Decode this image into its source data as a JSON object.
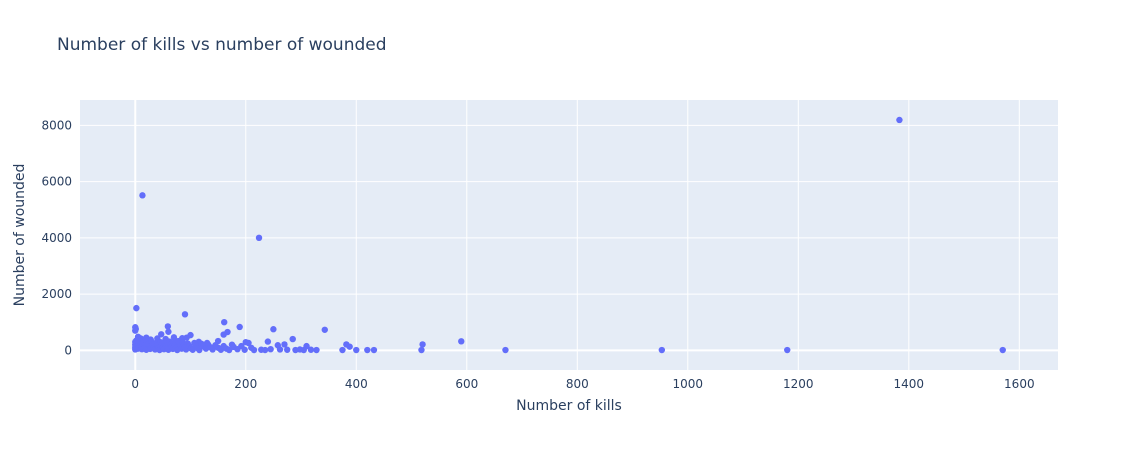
{
  "chart_data": {
    "type": "scatter",
    "title": "Number of kills vs number of wounded",
    "xlabel": "Number of kills",
    "ylabel": "Number of wounded",
    "xlim": [
      -100,
      1670
    ],
    "ylim": [
      -700,
      8900
    ],
    "xticks": [
      0,
      200,
      400,
      600,
      800,
      1000,
      1200,
      1400,
      1600
    ],
    "yticks": [
      0,
      2000,
      4000,
      6000,
      8000
    ],
    "grid": true,
    "colors": {
      "marker": "#636efa",
      "plot_bg": "#e5ecf6",
      "grid": "#ffffff",
      "text": "#2a3f5f"
    },
    "points": [
      {
        "x": 1383,
        "y": 8190
      },
      {
        "x": 13,
        "y": 5510
      },
      {
        "x": 224,
        "y": 4000
      },
      {
        "x": 2,
        "y": 1500
      },
      {
        "x": 90,
        "y": 1280
      },
      {
        "x": 161,
        "y": 1000
      },
      {
        "x": 189,
        "y": 830
      },
      {
        "x": 0,
        "y": 820
      },
      {
        "x": 59,
        "y": 850
      },
      {
        "x": 1,
        "y": 760
      },
      {
        "x": 250,
        "y": 750
      },
      {
        "x": 343,
        "y": 730
      },
      {
        "x": 0,
        "y": 700
      },
      {
        "x": 60,
        "y": 660
      },
      {
        "x": 167,
        "y": 650
      },
      {
        "x": 100,
        "y": 540
      },
      {
        "x": 47,
        "y": 570
      },
      {
        "x": 160,
        "y": 560
      },
      {
        "x": 5,
        "y": 480
      },
      {
        "x": 20,
        "y": 450
      },
      {
        "x": 40,
        "y": 420
      },
      {
        "x": 70,
        "y": 460
      },
      {
        "x": 85,
        "y": 430
      },
      {
        "x": 10,
        "y": 420
      },
      {
        "x": 28,
        "y": 380
      },
      {
        "x": 55,
        "y": 400
      },
      {
        "x": 93,
        "y": 450
      },
      {
        "x": 115,
        "y": 300
      },
      {
        "x": 130,
        "y": 260
      },
      {
        "x": 150,
        "y": 330
      },
      {
        "x": 285,
        "y": 400
      },
      {
        "x": 240,
        "y": 310
      },
      {
        "x": 590,
        "y": 320
      },
      {
        "x": 200,
        "y": 290
      },
      {
        "x": 205,
        "y": 260
      },
      {
        "x": 270,
        "y": 210
      },
      {
        "x": 382,
        "y": 210
      },
      {
        "x": 175,
        "y": 200
      },
      {
        "x": 520,
        "y": 210
      },
      {
        "x": 310,
        "y": 150
      },
      {
        "x": 388,
        "y": 130
      },
      {
        "x": 258,
        "y": 180
      },
      {
        "x": 0,
        "y": 300
      },
      {
        "x": 0,
        "y": 200
      },
      {
        "x": 0,
        "y": 100
      },
      {
        "x": 0,
        "y": 30
      },
      {
        "x": 2,
        "y": 350
      },
      {
        "x": 3,
        "y": 250
      },
      {
        "x": 4,
        "y": 150
      },
      {
        "x": 5,
        "y": 60
      },
      {
        "x": 8,
        "y": 320
      },
      {
        "x": 9,
        "y": 220
      },
      {
        "x": 11,
        "y": 120
      },
      {
        "x": 12,
        "y": 40
      },
      {
        "x": 15,
        "y": 280
      },
      {
        "x": 17,
        "y": 180
      },
      {
        "x": 18,
        "y": 90
      },
      {
        "x": 20,
        "y": 20
      },
      {
        "x": 22,
        "y": 330
      },
      {
        "x": 24,
        "y": 230
      },
      {
        "x": 26,
        "y": 140
      },
      {
        "x": 27,
        "y": 50
      },
      {
        "x": 30,
        "y": 300
      },
      {
        "x": 32,
        "y": 200
      },
      {
        "x": 34,
        "y": 110
      },
      {
        "x": 36,
        "y": 30
      },
      {
        "x": 38,
        "y": 260
      },
      {
        "x": 40,
        "y": 170
      },
      {
        "x": 42,
        "y": 80
      },
      {
        "x": 44,
        "y": 10
      },
      {
        "x": 46,
        "y": 290
      },
      {
        "x": 48,
        "y": 190
      },
      {
        "x": 50,
        "y": 100
      },
      {
        "x": 52,
        "y": 40
      },
      {
        "x": 54,
        "y": 250
      },
      {
        "x": 56,
        "y": 160
      },
      {
        "x": 58,
        "y": 70
      },
      {
        "x": 60,
        "y": 20
      },
      {
        "x": 62,
        "y": 310
      },
      {
        "x": 64,
        "y": 210
      },
      {
        "x": 66,
        "y": 120
      },
      {
        "x": 68,
        "y": 50
      },
      {
        "x": 70,
        "y": 270
      },
      {
        "x": 72,
        "y": 180
      },
      {
        "x": 74,
        "y": 90
      },
      {
        "x": 76,
        "y": 10
      },
      {
        "x": 78,
        "y": 330
      },
      {
        "x": 80,
        "y": 230
      },
      {
        "x": 82,
        "y": 140
      },
      {
        "x": 84,
        "y": 60
      },
      {
        "x": 86,
        "y": 280
      },
      {
        "x": 88,
        "y": 190
      },
      {
        "x": 90,
        "y": 100
      },
      {
        "x": 92,
        "y": 30
      },
      {
        "x": 95,
        "y": 240
      },
      {
        "x": 98,
        "y": 150
      },
      {
        "x": 101,
        "y": 70
      },
      {
        "x": 104,
        "y": 20
      },
      {
        "x": 107,
        "y": 260
      },
      {
        "x": 110,
        "y": 170
      },
      {
        "x": 113,
        "y": 80
      },
      {
        "x": 116,
        "y": 10
      },
      {
        "x": 120,
        "y": 230
      },
      {
        "x": 124,
        "y": 140
      },
      {
        "x": 128,
        "y": 60
      },
      {
        "x": 132,
        "y": 200
      },
      {
        "x": 136,
        "y": 110
      },
      {
        "x": 140,
        "y": 30
      },
      {
        "x": 145,
        "y": 180
      },
      {
        "x": 150,
        "y": 90
      },
      {
        "x": 155,
        "y": 20
      },
      {
        "x": 160,
        "y": 150
      },
      {
        "x": 165,
        "y": 60
      },
      {
        "x": 170,
        "y": 10
      },
      {
        "x": 178,
        "y": 120
      },
      {
        "x": 185,
        "y": 40
      },
      {
        "x": 192,
        "y": 150
      },
      {
        "x": 198,
        "y": 20
      },
      {
        "x": 210,
        "y": 90
      },
      {
        "x": 215,
        "y": 10
      },
      {
        "x": 228,
        "y": 20
      },
      {
        "x": 235,
        "y": 10
      },
      {
        "x": 245,
        "y": 40
      },
      {
        "x": 262,
        "y": 30
      },
      {
        "x": 275,
        "y": 20
      },
      {
        "x": 290,
        "y": 10
      },
      {
        "x": 298,
        "y": 30
      },
      {
        "x": 305,
        "y": 10
      },
      {
        "x": 318,
        "y": 20
      },
      {
        "x": 328,
        "y": 10
      },
      {
        "x": 375,
        "y": 10
      },
      {
        "x": 400,
        "y": 10
      },
      {
        "x": 420,
        "y": 10
      },
      {
        "x": 432,
        "y": 10
      },
      {
        "x": 518,
        "y": 10
      },
      {
        "x": 670,
        "y": 10
      },
      {
        "x": 953,
        "y": 10
      },
      {
        "x": 1180,
        "y": 10
      },
      {
        "x": 1570,
        "y": 10
      }
    ]
  }
}
